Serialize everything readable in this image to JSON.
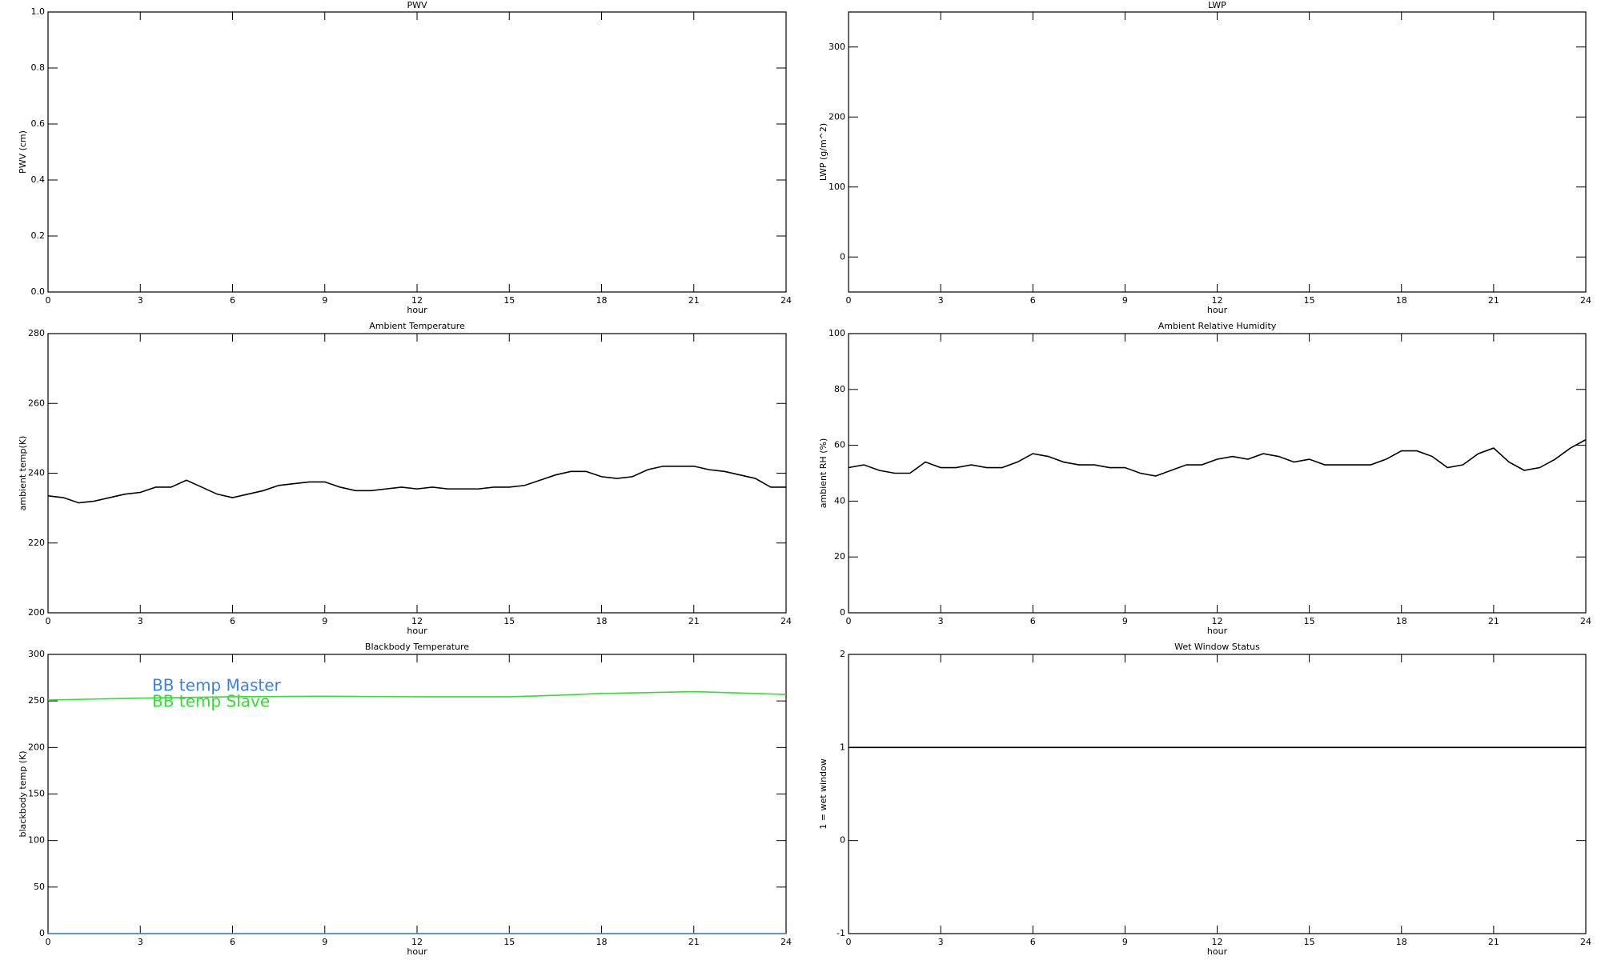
{
  "chart_data": [
    {
      "type": "line",
      "title": "PWV",
      "xlabel": "hour",
      "ylabel": "PWV (cm)",
      "xlim": [
        0,
        24
      ],
      "xticks": [
        0,
        3,
        6,
        9,
        12,
        15,
        18,
        21,
        24
      ],
      "ylim": [
        0,
        1
      ],
      "yticks": [
        {
          "value": 0,
          "label": "0.0"
        },
        0.2,
        0.4,
        0.6,
        0.8,
        {
          "value": 1,
          "label": "1.0"
        }
      ]
    },
    {
      "type": "line",
      "title": "LWP",
      "xlabel": "hour",
      "ylabel": "LWP (g/m^2)",
      "xlim": [
        0,
        24
      ],
      "xticks": [
        0,
        3,
        6,
        9,
        12,
        15,
        18,
        21,
        24
      ],
      "ylim": [
        -50,
        350
      ],
      "yticks": [
        0,
        100,
        200,
        300
      ]
    },
    {
      "type": "line",
      "title": "Ambient Temperature",
      "xlabel": "hour",
      "ylabel": "ambient temp(K)",
      "xlim": [
        0,
        24
      ],
      "xticks": [
        0,
        3,
        6,
        9,
        12,
        15,
        18,
        21,
        24
      ],
      "ylim": [
        200,
        280
      ],
      "yticks": [
        200,
        220,
        240,
        260,
        280
      ],
      "x": [
        0,
        0.5,
        1,
        1.5,
        2,
        2.5,
        3,
        3.5,
        4,
        4.5,
        5,
        5.5,
        6,
        6.5,
        7,
        7.5,
        8,
        8.5,
        9,
        9.5,
        10,
        10.5,
        11,
        11.5,
        12,
        12.5,
        13,
        13.5,
        14,
        14.5,
        15,
        15.5,
        16,
        16.5,
        17,
        17.5,
        18,
        18.5,
        19,
        19.5,
        20,
        20.5,
        21,
        21.5,
        22,
        22.5,
        23,
        23.5,
        24
      ],
      "series": [
        {
          "color": "#000000",
          "values": [
            233.5,
            233,
            231.5,
            232,
            233,
            234,
            234.5,
            236,
            236,
            238,
            236,
            234,
            233,
            234,
            235,
            236.5,
            237,
            237.5,
            237.5,
            236,
            235,
            235,
            235.5,
            236,
            235.5,
            236,
            235.5,
            235.5,
            235.5,
            236,
            236,
            236.5,
            238,
            239.5,
            240.5,
            240.5,
            239,
            238.5,
            239,
            241,
            242,
            242,
            242,
            241,
            240.5,
            239.5,
            238.5,
            236,
            236
          ]
        }
      ]
    },
    {
      "type": "line",
      "title": "Ambient Relative Humidity",
      "xlabel": "hour",
      "ylabel": "ambient RH (%)",
      "xlim": [
        0,
        24
      ],
      "xticks": [
        0,
        3,
        6,
        9,
        12,
        15,
        18,
        21,
        24
      ],
      "ylim": [
        0,
        100
      ],
      "yticks": [
        0,
        20,
        40,
        60,
        80,
        100
      ],
      "x": [
        0,
        0.5,
        1,
        1.5,
        2,
        2.5,
        3,
        3.5,
        4,
        4.5,
        5,
        5.5,
        6,
        6.5,
        7,
        7.5,
        8,
        8.5,
        9,
        9.5,
        10,
        10.5,
        11,
        11.5,
        12,
        12.5,
        13,
        13.5,
        14,
        14.5,
        15,
        15.5,
        16,
        16.5,
        17,
        17.5,
        18,
        18.5,
        19,
        19.5,
        20,
        20.5,
        21,
        21.5,
        22,
        22.5,
        23,
        23.5,
        24
      ],
      "series": [
        {
          "color": "#000000",
          "values": [
            52,
            53,
            51,
            50,
            50,
            54,
            52,
            52,
            53,
            52,
            52,
            54,
            57,
            56,
            54,
            53,
            53,
            52,
            52,
            50,
            49,
            51,
            53,
            53,
            55,
            56,
            55,
            57,
            56,
            54,
            55,
            53,
            53,
            53,
            53,
            55,
            58,
            58,
            56,
            52,
            53,
            57,
            59,
            54,
            51,
            52,
            55,
            59,
            62
          ]
        }
      ]
    },
    {
      "type": "line",
      "title": "Blackbody Temperature",
      "xlabel": "hour",
      "ylabel": "blackbody temp (K)",
      "xlim": [
        0,
        24
      ],
      "xticks": [
        0,
        3,
        6,
        9,
        12,
        15,
        18,
        21,
        24
      ],
      "ylim": [
        0,
        300
      ],
      "yticks": [
        0,
        50,
        100,
        150,
        200,
        250,
        300
      ],
      "legend": "upper left",
      "x": [
        0,
        3,
        6,
        9,
        12,
        15,
        16.5,
        18,
        21,
        24
      ],
      "series": [
        {
          "name": "BB temp Master",
          "color": "#3b82e0",
          "values": [
            0,
            0,
            0,
            0,
            0,
            0,
            0,
            0,
            0,
            0
          ]
        },
        {
          "name": "BB temp Slave",
          "color": "#33dd33",
          "values": [
            251,
            253,
            254.5,
            255,
            254.5,
            254.5,
            256,
            258,
            260,
            257
          ]
        }
      ]
    },
    {
      "type": "line",
      "title": "Wet Window Status",
      "xlabel": "hour",
      "ylabel": "1 = wet window",
      "xlim": [
        0,
        24
      ],
      "xticks": [
        0,
        3,
        6,
        9,
        12,
        15,
        18,
        21,
        24
      ],
      "ylim": [
        -1,
        2
      ],
      "yticks": [
        -1,
        0,
        1,
        2
      ],
      "x": [
        0,
        24
      ],
      "series": [
        {
          "color": "#000000",
          "values": [
            1,
            1
          ]
        }
      ]
    }
  ]
}
